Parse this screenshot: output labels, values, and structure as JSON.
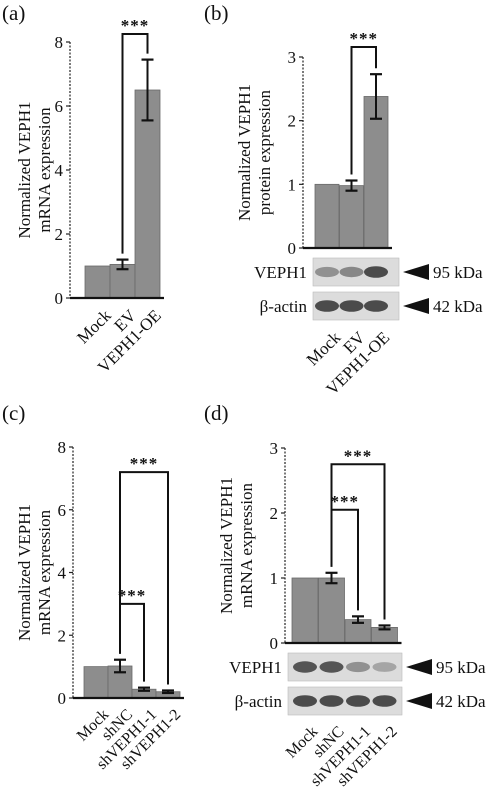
{
  "chart_data": [
    {
      "panel": "(a)",
      "type": "bar",
      "ylabel": [
        "Normalized VEPH1",
        "mRNA expression"
      ],
      "ylim": [
        0,
        8
      ],
      "yticks": [
        "0",
        "2",
        "4",
        "6",
        "8"
      ],
      "categories": [
        "Mock",
        "EV",
        "VEPH1-OE"
      ],
      "values": [
        1.0,
        1.05,
        6.5
      ],
      "errors": [
        0.0,
        0.15,
        0.95
      ],
      "significance": [
        {
          "from": 1,
          "to": 2,
          "label": "***"
        }
      ]
    },
    {
      "panel": "(b)",
      "type": "bar",
      "ylabel": [
        "Normalized VEPH1",
        "protein expression"
      ],
      "ylim": [
        0,
        3
      ],
      "yticks": [
        "0",
        "1",
        "2",
        "3"
      ],
      "categories": [
        "Mock",
        "EV",
        "VEPH1-OE"
      ],
      "values": [
        1.0,
        0.98,
        2.38
      ],
      "errors": [
        0.0,
        0.08,
        0.35
      ],
      "significance": [
        {
          "from": 1,
          "to": 2,
          "label": "***"
        }
      ],
      "blot": {
        "rows": [
          {
            "label": "VEPH1",
            "marker": "95 kDa",
            "intensity": [
              0.55,
              0.6,
              0.9
            ]
          },
          {
            "label": "β-actin",
            "marker": "42 kDa",
            "intensity": [
              0.9,
              0.9,
              0.9
            ]
          }
        ]
      }
    },
    {
      "panel": "(c)",
      "type": "bar",
      "ylabel": [
        "Normalized VEPH1",
        "mRNA expression"
      ],
      "ylim": [
        0,
        8
      ],
      "yticks": [
        "0",
        "2",
        "4",
        "6",
        "8"
      ],
      "categories": [
        "Mock",
        "shNC",
        "shVEPH1-1",
        "shVEPH1-2"
      ],
      "values": [
        1.0,
        1.02,
        0.28,
        0.2
      ],
      "errors": [
        0.0,
        0.2,
        0.05,
        0.04
      ],
      "significance": [
        {
          "from": 1,
          "to": 2,
          "label": "***"
        },
        {
          "from": 1,
          "to": 3,
          "label": "***"
        }
      ]
    },
    {
      "panel": "(d)",
      "type": "bar",
      "ylabel": [
        "Normalized VEPH1",
        "mRNA expression"
      ],
      "ylim": [
        0,
        3
      ],
      "yticks": [
        "0",
        "1",
        "2",
        "3"
      ],
      "categories": [
        "Mock",
        "shNC",
        "shVEPH1-1",
        "shVEPH1-2"
      ],
      "values": [
        1.0,
        1.0,
        0.36,
        0.24
      ],
      "errors": [
        0.0,
        0.08,
        0.05,
        0.03
      ],
      "significance": [
        {
          "from": 1,
          "to": 2,
          "label": "***"
        },
        {
          "from": 1,
          "to": 3,
          "label": "***"
        }
      ],
      "blot": {
        "rows": [
          {
            "label": "VEPH1",
            "marker": "95 kDa",
            "intensity": [
              0.85,
              0.85,
              0.55,
              0.45
            ]
          },
          {
            "label": "β-actin",
            "marker": "42 kDa",
            "intensity": [
              0.9,
              0.9,
              0.9,
              0.9
            ]
          }
        ]
      }
    }
  ]
}
